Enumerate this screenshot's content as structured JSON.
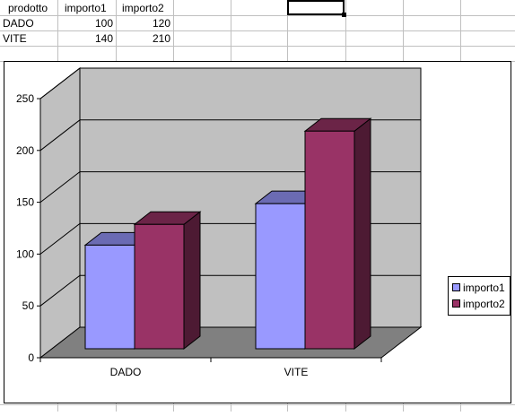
{
  "sheet": {
    "headers": [
      "prodotto",
      "importo1",
      "importo2"
    ],
    "rows": [
      {
        "prodotto": "DADO",
        "importo1": "100",
        "importo2": "120"
      },
      {
        "prodotto": "VITE",
        "importo1": "140",
        "importo2": "210"
      }
    ],
    "grid_color": "#c0c0c0"
  },
  "chart_data": {
    "type": "bar",
    "style": "3d-clustered-column",
    "categories": [
      "DADO",
      "VITE"
    ],
    "series": [
      {
        "name": "importo1",
        "values": [
          100,
          140
        ],
        "color": "#9999ff"
      },
      {
        "name": "importo2",
        "values": [
          120,
          210
        ],
        "color": "#993366"
      }
    ],
    "ylim": [
      0,
      250
    ],
    "yticks": [
      "0",
      "50",
      "100",
      "150",
      "200",
      "250"
    ],
    "grid": true,
    "legend": "right",
    "wall_color": "#c0c0c0",
    "floor_color": "#808080"
  }
}
